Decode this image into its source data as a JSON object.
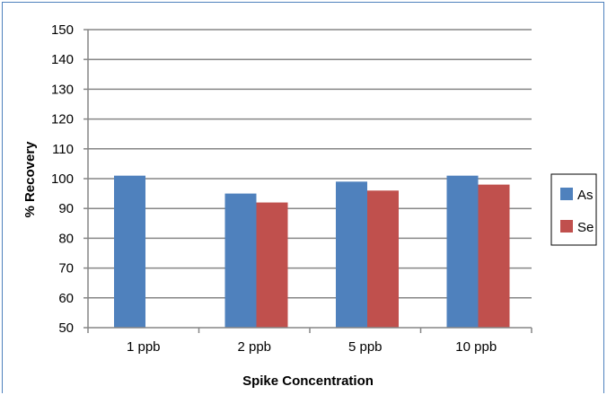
{
  "chart_data": {
    "type": "bar",
    "title": "",
    "xlabel": "Spike Concentration",
    "ylabel": "% Recovery",
    "categories": [
      "1 ppb",
      "2 ppb",
      "5 ppb",
      "10 ppb"
    ],
    "series": [
      {
        "name": "As",
        "color": "#4f81bd",
        "values": [
          101,
          95,
          99,
          101
        ]
      },
      {
        "name": "Se",
        "color": "#c0504d",
        "values": [
          null,
          92,
          96,
          98
        ]
      }
    ],
    "ylim": [
      50,
      150
    ],
    "yticks": [
      50,
      60,
      70,
      80,
      90,
      100,
      110,
      120,
      130,
      140,
      150
    ],
    "grid": true,
    "legend_position": "right"
  }
}
